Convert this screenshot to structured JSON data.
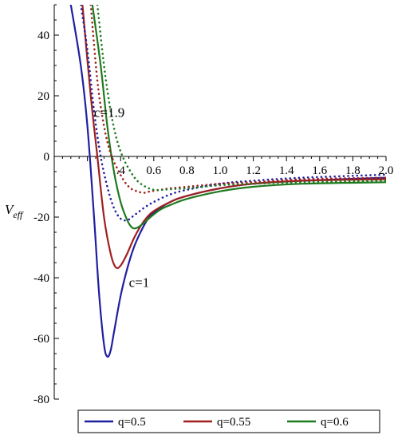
{
  "chart_data": {
    "type": "line",
    "ylabel_main": "V",
    "ylabel_sub": "eff",
    "xlim": [
      0.0,
      2.0
    ],
    "ylim": [
      -80,
      50
    ],
    "x_ticks": [
      0.4,
      0.6,
      0.8,
      1.0,
      1.2,
      1.4,
      1.6,
      1.8,
      2.0
    ],
    "x_tick_labels": [
      ".4",
      "0.6",
      "0.8",
      "1.0",
      "1.2",
      "1.4",
      "1.6",
      "1.8",
      "2.0"
    ],
    "y_ticks": [
      40,
      20,
      0,
      -20,
      -40,
      -60,
      -80
    ],
    "y_tick_labels": [
      "40",
      "20",
      "0",
      "-20",
      "-40",
      "-60",
      "-80"
    ],
    "annotations": [
      {
        "text": "c=1.9",
        "x": 0.24,
        "y": 13
      },
      {
        "text": "c=1",
        "x": 0.45,
        "y": -43
      }
    ],
    "series": [
      {
        "name": "q=0.5",
        "c": "c=1",
        "style": "solid",
        "color": "#1f1fa0",
        "x": [
          0.1,
          0.16,
          0.2,
          0.24,
          0.27,
          0.3,
          0.32,
          0.34,
          0.36,
          0.4,
          0.44,
          0.48,
          0.52,
          0.56,
          0.6,
          0.7,
          0.8,
          1.0,
          1.2,
          1.5,
          2.0
        ],
        "y": [
          50,
          30,
          10,
          -20,
          -45,
          -62,
          -66,
          -64,
          -58,
          -46,
          -37,
          -30,
          -25,
          -21,
          -18.5,
          -15,
          -13,
          -10.5,
          -9,
          -8,
          -7
        ]
      },
      {
        "name": "q=0.55",
        "c": "c=1",
        "style": "solid",
        "color": "#a01f1f",
        "x": [
          0.17,
          0.22,
          0.26,
          0.3,
          0.34,
          0.37,
          0.4,
          0.44,
          0.48,
          0.52,
          0.56,
          0.6,
          0.7,
          0.8,
          1.0,
          1.2,
          1.5,
          2.0
        ],
        "y": [
          50,
          20,
          0,
          -20,
          -32,
          -36.5,
          -36,
          -32,
          -27,
          -23,
          -20,
          -18,
          -15,
          -13,
          -10.5,
          -9,
          -8,
          -7.5
        ]
      },
      {
        "name": "q=0.6",
        "c": "c=1",
        "style": "solid",
        "color": "#1f7a1f",
        "x": [
          0.23,
          0.28,
          0.32,
          0.36,
          0.4,
          0.44,
          0.47,
          0.5,
          0.54,
          0.58,
          0.64,
          0.7,
          0.8,
          1.0,
          1.2,
          1.5,
          2.0
        ],
        "y": [
          50,
          30,
          10,
          -5,
          -15,
          -21,
          -23.5,
          -23.5,
          -22,
          -20,
          -17.5,
          -16,
          -14,
          -11.5,
          -10,
          -9,
          -8.5
        ]
      },
      {
        "name": "q=0.5",
        "c": "c=1.9",
        "style": "dotted",
        "color": "#1f1fa0",
        "x": [
          0.16,
          0.2,
          0.24,
          0.28,
          0.32,
          0.36,
          0.4,
          0.44,
          0.48,
          0.54,
          0.6,
          0.7,
          0.8,
          1.0,
          1.2,
          1.5,
          2.0
        ],
        "y": [
          50,
          35,
          15,
          0,
          -10,
          -17,
          -20.5,
          -21,
          -19.5,
          -17,
          -15,
          -12.5,
          -11,
          -9,
          -8,
          -7,
          -6
        ]
      },
      {
        "name": "q=0.55",
        "c": "c=1.9",
        "style": "dotted",
        "color": "#a01f1f",
        "x": [
          0.22,
          0.26,
          0.3,
          0.34,
          0.38,
          0.42,
          0.46,
          0.5,
          0.54,
          0.58,
          0.64,
          0.7,
          0.8,
          1.0,
          1.2,
          1.5,
          2.0
        ],
        "y": [
          50,
          25,
          10,
          1,
          -4,
          -8,
          -10.5,
          -11.5,
          -12,
          -11.5,
          -11,
          -10.5,
          -10,
          -9,
          -8.5,
          -7.5,
          -7
        ]
      },
      {
        "name": "q=0.6",
        "c": "c=1.9",
        "style": "dotted",
        "color": "#1f7a1f",
        "x": [
          0.26,
          0.3,
          0.34,
          0.38,
          0.42,
          0.46,
          0.5,
          0.55,
          0.6,
          0.65,
          0.7,
          0.8,
          1.0,
          1.2,
          1.5,
          2.0
        ],
        "y": [
          50,
          30,
          15,
          5,
          -1,
          -5,
          -8,
          -10,
          -11,
          -11,
          -10.8,
          -10.5,
          -9.5,
          -9,
          -8.5,
          -8
        ]
      }
    ],
    "legend": {
      "placement": "bottom",
      "entries": [
        {
          "label": "q=0.5",
          "color": "#1f1fa0"
        },
        {
          "label": "q=0.55",
          "color": "#a01f1f"
        },
        {
          "label": "q=0.6",
          "color": "#1f7a1f"
        }
      ]
    },
    "grid": false
  }
}
